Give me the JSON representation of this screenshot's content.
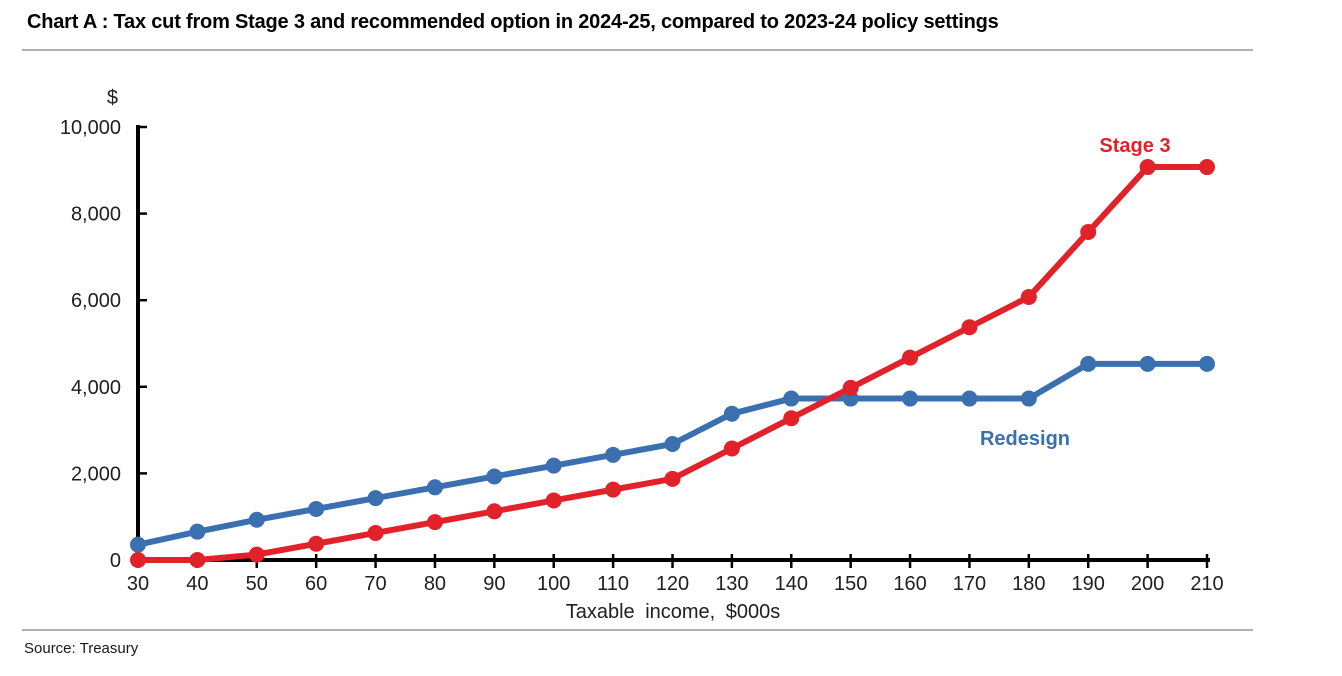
{
  "page": {
    "source": "Source: Treasury"
  },
  "chart_data": {
    "type": "line",
    "title": "Chart A : Tax cut from Stage 3 and recommended option in 2024-25, compared to 2023-24 policy settings",
    "xlabel": "Taxable income, $000s",
    "ylabel": "$",
    "x": [
      30,
      40,
      50,
      60,
      70,
      80,
      90,
      100,
      110,
      120,
      130,
      140,
      150,
      160,
      170,
      180,
      190,
      200,
      210
    ],
    "ylim": [
      0,
      10000
    ],
    "yticks": [
      0,
      2000,
      4000,
      6000,
      8000,
      10000
    ],
    "ytick_labels": [
      "0",
      "2,000",
      "4,000",
      "6,000",
      "8,000",
      "10,000"
    ],
    "grid": "off",
    "legend_position": "inline-labels",
    "axis_color": "#000000",
    "tick_label_color": "#202020",
    "series": [
      {
        "name": "Stage 3",
        "color": "#e2222a",
        "values": [
          0,
          0,
          125,
          375,
          625,
          875,
          1125,
          1375,
          1625,
          1875,
          2575,
          3275,
          3975,
          4675,
          5375,
          6075,
          7575,
          9075,
          9075
        ]
      },
      {
        "name": "Redesign",
        "color": "#3a6fb0",
        "values": [
          354,
          654,
          929,
          1179,
          1429,
          1679,
          1929,
          2179,
          2429,
          2679,
          3379,
          3729,
          3729,
          3729,
          3729,
          3729,
          4529,
          4529,
          4529
        ]
      }
    ]
  }
}
